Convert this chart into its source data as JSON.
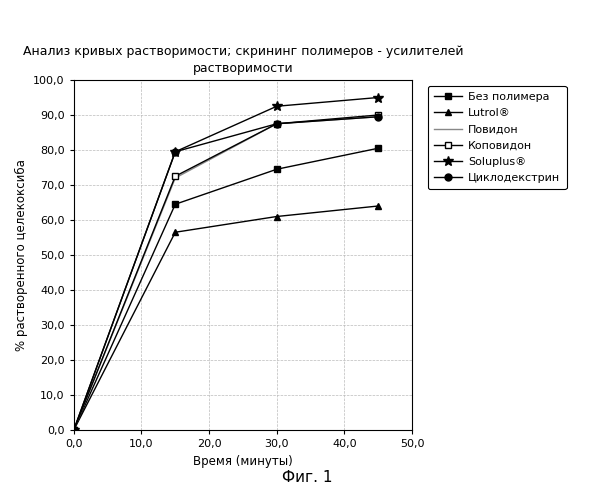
{
  "title": "Анализ кривых растворимости; скрининг полимеров - усилителей\nрастворимости",
  "xlabel": "Время (минуты)",
  "ylabel": "% растворенного целекоксиба",
  "fig_caption": "Фиг. 1",
  "xlim": [
    0,
    50
  ],
  "ylim": [
    0,
    100
  ],
  "xticks": [
    0.0,
    10.0,
    20.0,
    30.0,
    40.0,
    50.0
  ],
  "yticks": [
    0.0,
    10.0,
    20.0,
    30.0,
    40.0,
    50.0,
    60.0,
    70.0,
    80.0,
    90.0,
    100.0
  ],
  "series": [
    {
      "label": "Без полимера",
      "x": [
        0,
        15,
        30,
        45
      ],
      "y": [
        0,
        64.5,
        74.5,
        80.5
      ],
      "color": "#000000",
      "marker": "s",
      "markersize": 4,
      "markerfacecolor": "#000000",
      "markeredgecolor": "#000000",
      "linestyle": "-",
      "linewidth": 1.0
    },
    {
      "label": "Lutrol®",
      "x": [
        0,
        15,
        30,
        45
      ],
      "y": [
        0,
        56.5,
        61.0,
        64.0
      ],
      "color": "#000000",
      "marker": "^",
      "markersize": 5,
      "markerfacecolor": "#000000",
      "markeredgecolor": "#000000",
      "linestyle": "-",
      "linewidth": 1.0
    },
    {
      "label": "Повидон",
      "x": [
        0,
        15,
        30,
        45
      ],
      "y": [
        0,
        72.0,
        87.5,
        89.5
      ],
      "color": "#888888",
      "marker": "",
      "markersize": 0,
      "markerfacecolor": "#888888",
      "markeredgecolor": "#888888",
      "linestyle": "-",
      "linewidth": 1.0
    },
    {
      "label": "Коповидон",
      "x": [
        0,
        15,
        30,
        45
      ],
      "y": [
        0,
        72.5,
        87.5,
        90.0
      ],
      "color": "#000000",
      "marker": "s",
      "markersize": 4,
      "markerfacecolor": "#ffffff",
      "markeredgecolor": "#000000",
      "linestyle": "-",
      "linewidth": 1.0
    },
    {
      "label": "Soluplus®",
      "x": [
        0,
        15,
        30,
        45
      ],
      "y": [
        0,
        79.5,
        92.5,
        95.0
      ],
      "color": "#000000",
      "marker": "*",
      "markersize": 7,
      "markerfacecolor": "#000000",
      "markeredgecolor": "#000000",
      "linestyle": "-",
      "linewidth": 1.0
    },
    {
      "label": "Циклодекстрин",
      "x": [
        0,
        15,
        30,
        45
      ],
      "y": [
        0,
        79.5,
        87.5,
        89.5
      ],
      "color": "#000000",
      "marker": "o",
      "markersize": 5,
      "markerfacecolor": "#000000",
      "markeredgecolor": "#000000",
      "linestyle": "-",
      "linewidth": 1.0
    }
  ],
  "background_color": "#ffffff",
  "grid_color": "#bbbbbb",
  "title_fontsize": 9,
  "axis_label_fontsize": 8.5,
  "tick_fontsize": 8,
  "legend_fontsize": 8,
  "caption_fontsize": 11
}
